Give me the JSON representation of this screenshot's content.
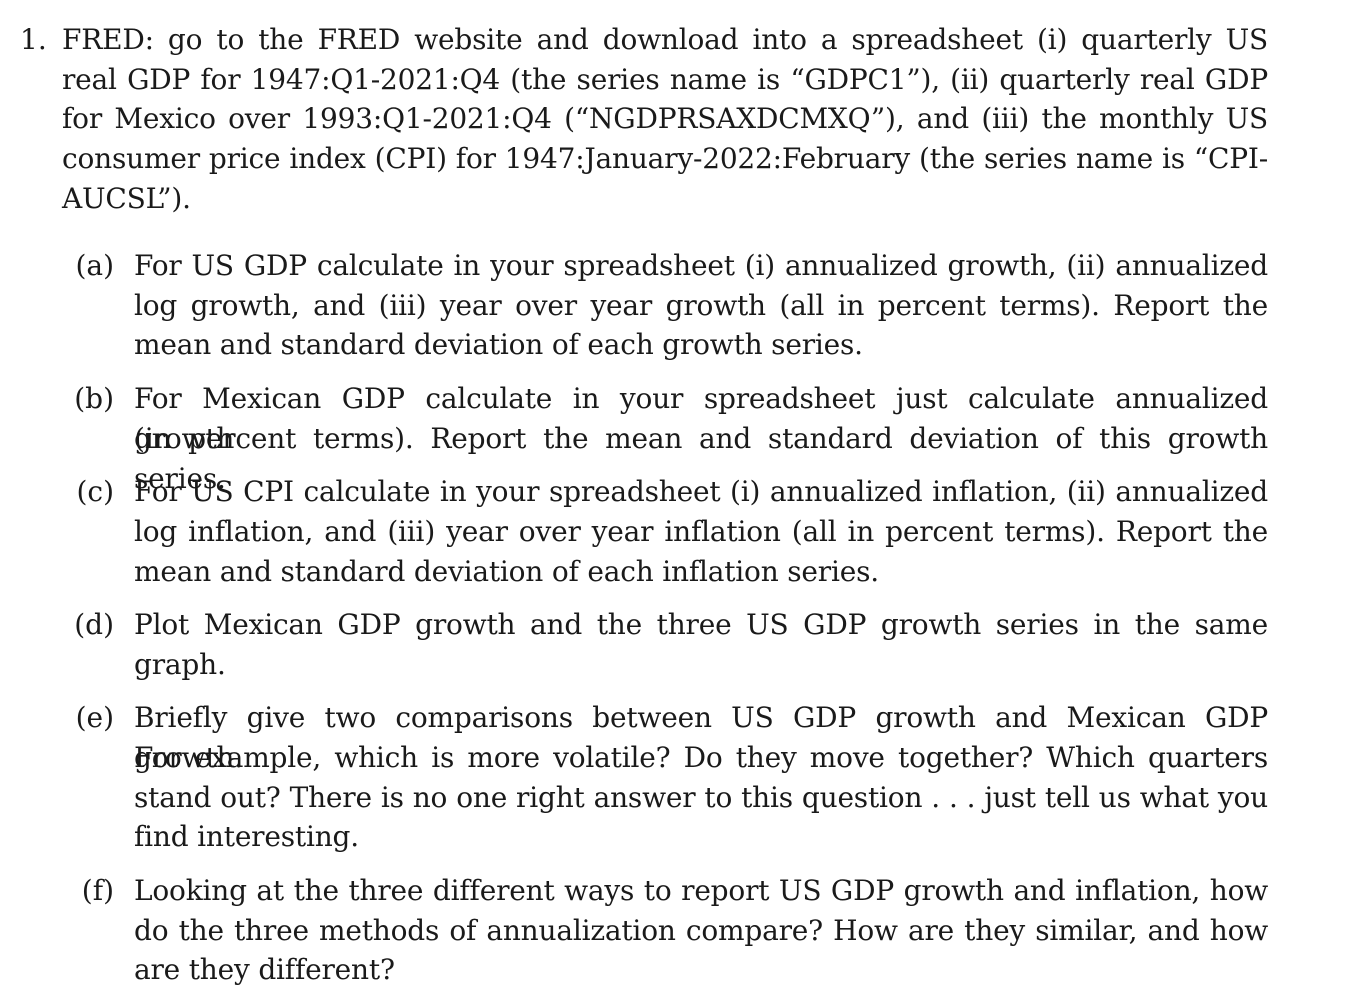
{
  "problem": {
    "number": "1.",
    "lines": [
      "FRED: go to the FRED website and download into a spreadsheet (i) quarterly US",
      "real GDP for 1947:Q1-2021:Q4 (the series name is “GDPC1”), (ii) quarterly real GDP",
      "for Mexico over 1993:Q1-2021:Q4 (“NGDPRSAXDCMXQ”), and (iii) the monthly US",
      "consumer price index (CPI) for 1947:January-2022:February (the series name is “CPI-",
      "AUCSL”)."
    ]
  },
  "parts": [
    {
      "label": "(a)",
      "lines": [
        "For US GDP calculate in your spreadsheet (i) annualized growth, (ii) annualized",
        "log growth, and (iii) year over year growth (all in percent terms). Report the",
        "mean and standard deviation of each growth series."
      ]
    },
    {
      "label": "(b)",
      "lines": [
        "For Mexican GDP calculate in your spreadsheet just calculate annualized growth",
        "(in percent terms). Report the mean and standard deviation of this growth series."
      ]
    },
    {
      "label": "(c)",
      "lines": [
        "For US CPI calculate in your spreadsheet (i) annualized inflation, (ii) annualized",
        "log inflation, and (iii) year over year inflation (all in percent terms). Report the",
        "mean and standard deviation of each inflation series."
      ]
    },
    {
      "label": "(d)",
      "lines": [
        "Plot Mexican GDP growth and the three US GDP growth series in the same",
        "graph."
      ]
    },
    {
      "label": "(e)",
      "lines": [
        "Briefly give two comparisons between US GDP growth and Mexican GDP growth.",
        "For example, which is more volatile? Do they move together? Which quarters",
        "stand out? There is no one right answer to this question . . . just tell us what you",
        "find interesting."
      ]
    },
    {
      "label": "(f)",
      "lines": [
        "Looking at the three different ways to report US GDP growth and inflation, how",
        "do the three methods of annualization compare? How are they similar, and how",
        "are they different?"
      ]
    }
  ]
}
